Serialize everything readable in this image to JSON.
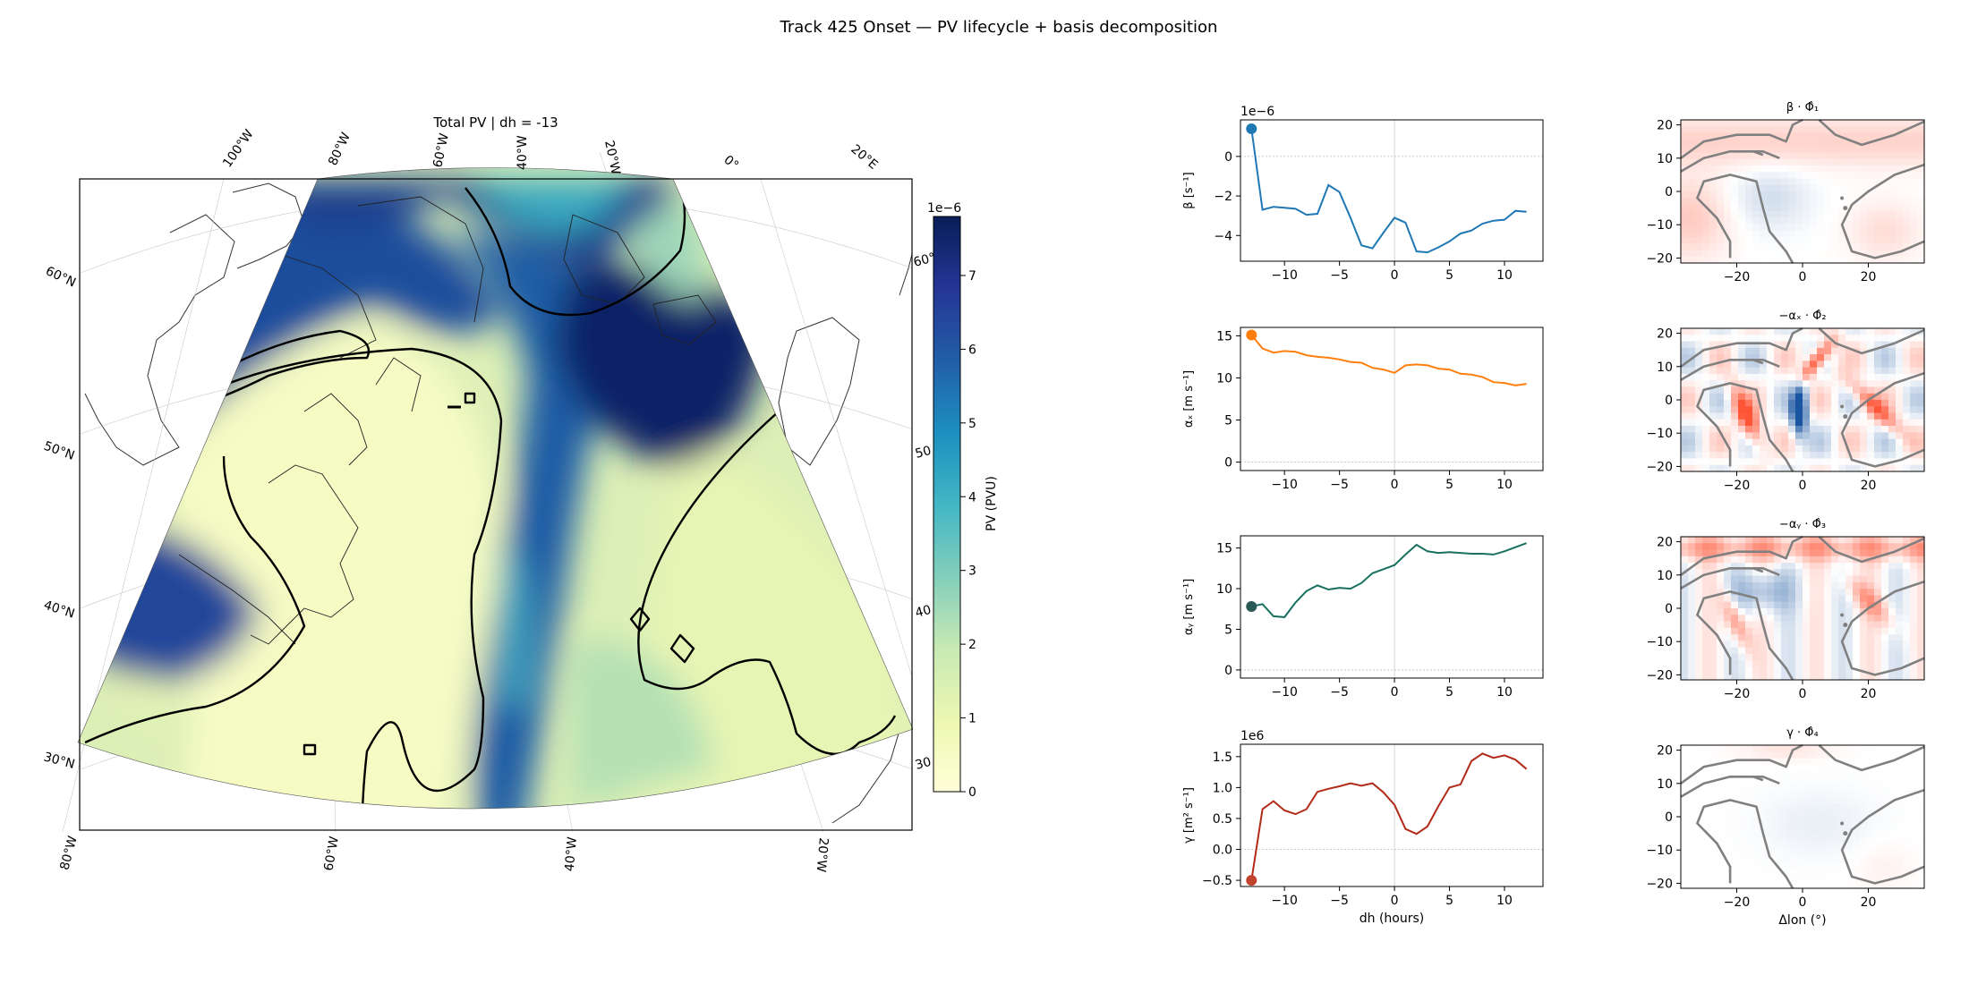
{
  "figure": {
    "suptitle": "Track 425 Onset — PV lifecycle + basis decomposition"
  },
  "map": {
    "title": "Total PV  |  dh = -13",
    "top_lon_labels": [
      "100°W",
      "80°W",
      "60°W",
      "40°W",
      "20°W",
      "0°",
      "20°E"
    ],
    "bottom_lon_labels": [
      "80°W",
      "60°W",
      "40°W",
      "20°W"
    ],
    "left_lat_labels": [
      "60°N",
      "50°N",
      "40°N",
      "30°N"
    ],
    "right_lat_labels": [
      "60°",
      "50",
      "40",
      "30"
    ],
    "colorbar": {
      "label": "PV (PVU)",
      "exponent": "1e−6",
      "ticks": [
        "0",
        "1",
        "2",
        "3",
        "4",
        "5",
        "6",
        "7"
      ],
      "range": [
        0,
        7.8
      ],
      "colormap": [
        "#ffffd9",
        "#edf8b1",
        "#c7e9b4",
        "#7fcdbb",
        "#41b6c4",
        "#1d91c0",
        "#225ea8",
        "#253494",
        "#081d58"
      ]
    }
  },
  "chart_data": [
    {
      "type": "line",
      "name": "beta",
      "ylabel": "β [s⁻¹]",
      "exponent": "1e−6",
      "color": "#1f77b4",
      "x": [
        -13,
        -12,
        -11,
        -10,
        -9,
        -8,
        -7,
        -6,
        -5,
        -4,
        -3,
        -2,
        -1,
        0,
        1,
        2,
        3,
        4,
        5,
        6,
        7,
        8,
        9,
        10,
        11,
        12
      ],
      "values": [
        1.4,
        -2.7,
        -2.55,
        -2.6,
        -2.65,
        -2.95,
        -2.9,
        -1.45,
        -1.8,
        -3.1,
        -4.5,
        -4.65,
        -3.85,
        -3.1,
        -3.35,
        -4.8,
        -4.85,
        -4.6,
        -4.3,
        -3.9,
        -3.75,
        -3.4,
        -3.25,
        -3.2,
        -2.75,
        -2.8
      ],
      "xlim": [
        -14,
        13.5
      ],
      "ylim": [
        -5.3,
        1.85
      ],
      "yticks": [
        -4,
        -2,
        0
      ],
      "xticks": [
        -10,
        -5,
        0,
        5,
        10
      ],
      "reference_y": 0
    },
    {
      "type": "line",
      "name": "alpha_x",
      "ylabel": "αₓ [m s⁻¹]",
      "color": "#ff7f0e",
      "x": [
        -13,
        -12,
        -11,
        -10,
        -9,
        -8,
        -7,
        -6,
        -5,
        -4,
        -3,
        -2,
        -1,
        0,
        1,
        2,
        3,
        4,
        5,
        6,
        7,
        8,
        9,
        10,
        11,
        12
      ],
      "values": [
        15.1,
        13.5,
        13.0,
        13.2,
        13.1,
        12.7,
        12.5,
        12.4,
        12.2,
        11.9,
        11.8,
        11.2,
        11.0,
        10.6,
        11.5,
        11.6,
        11.5,
        11.1,
        11.0,
        10.5,
        10.4,
        10.1,
        9.5,
        9.4,
        9.1,
        9.3
      ],
      "xlim": [
        -14,
        13.5
      ],
      "ylim": [
        -1.0,
        16.0
      ],
      "yticks": [
        0,
        5,
        10,
        15
      ],
      "xticks": [
        -10,
        -5,
        0,
        5,
        10
      ],
      "reference_y": 0
    },
    {
      "type": "line",
      "name": "alpha_y",
      "ylabel": "αᵧ [m s⁻¹]",
      "color": "#17705f",
      "marker_color": "#2a5a55",
      "x": [
        -13,
        -12,
        -11,
        -10,
        -9,
        -8,
        -7,
        -6,
        -5,
        -4,
        -3,
        -2,
        -1,
        0,
        1,
        2,
        3,
        4,
        5,
        6,
        7,
        8,
        9,
        10,
        11,
        12
      ],
      "values": [
        7.8,
        8.1,
        6.6,
        6.5,
        8.3,
        9.7,
        10.4,
        9.9,
        10.1,
        10.0,
        10.7,
        11.9,
        12.4,
        12.9,
        14.2,
        15.4,
        14.6,
        14.4,
        14.5,
        14.4,
        14.3,
        14.3,
        14.2,
        14.6,
        15.1,
        15.6
      ],
      "xlim": [
        -14,
        13.5
      ],
      "ylim": [
        -1.0,
        16.5
      ],
      "yticks": [
        0,
        5,
        10,
        15
      ],
      "xticks": [
        -10,
        -5,
        0,
        5,
        10
      ],
      "reference_y": 0
    },
    {
      "type": "line",
      "name": "gamma",
      "ylabel": "γ [m² s⁻¹]",
      "exponent": "1e6",
      "xlabel": "dh (hours)",
      "color": "#b22b19",
      "marker_color": "#c0432c",
      "x": [
        -13,
        -12,
        -11,
        -10,
        -9,
        -8,
        -7,
        -6,
        -5,
        -4,
        -3,
        -2,
        -1,
        0,
        1,
        2,
        3,
        4,
        5,
        6,
        7,
        8,
        9,
        10,
        11,
        12
      ],
      "values": [
        -0.5,
        0.65,
        0.78,
        0.63,
        0.57,
        0.65,
        0.93,
        0.98,
        1.02,
        1.07,
        1.03,
        1.07,
        0.92,
        0.72,
        0.33,
        0.25,
        0.37,
        0.7,
        1.0,
        1.05,
        1.43,
        1.55,
        1.48,
        1.52,
        1.45,
        1.3
      ],
      "xlim": [
        -14,
        13.5
      ],
      "ylim": [
        -0.6,
        1.7
      ],
      "yticks": [
        -0.5,
        0.0,
        0.5,
        1.0,
        1.5
      ],
      "ytick_labels": [
        "−0.5",
        "0.0",
        "0.5",
        "1.0",
        "1.5"
      ],
      "xticks": [
        -10,
        -5,
        0,
        5,
        10
      ],
      "reference_y": 0
    },
    {
      "type": "heatmap",
      "name": "phi1",
      "title": "β · Φ̂₁",
      "xlim": [
        -37,
        37
      ],
      "ylim": [
        -21.5,
        21.5
      ],
      "xticks": [
        -20,
        0,
        20
      ],
      "yticks": [
        -20,
        -10,
        0,
        10,
        20
      ],
      "pattern": "smooth"
    },
    {
      "type": "heatmap",
      "name": "phi2",
      "title": "−αₓ · Φ̂₂",
      "xlim": [
        -37,
        37
      ],
      "ylim": [
        -21.5,
        21.5
      ],
      "xticks": [
        -20,
        0,
        20
      ],
      "yticks": [
        -20,
        -10,
        0,
        10,
        20
      ],
      "pattern": "strong"
    },
    {
      "type": "heatmap",
      "name": "phi3",
      "title": "−αᵧ · Φ̂₃",
      "xlim": [
        -37,
        37
      ],
      "ylim": [
        -21.5,
        21.5
      ],
      "xticks": [
        -20,
        0,
        20
      ],
      "yticks": [
        -20,
        -10,
        0,
        10,
        20
      ],
      "pattern": "medium"
    },
    {
      "type": "heatmap",
      "name": "phi4",
      "title": "γ · Φ̂₄",
      "xlabel": "Δlon (°)",
      "xlim": [
        -37,
        37
      ],
      "ylim": [
        -21.5,
        21.5
      ],
      "xticks": [
        -20,
        0,
        20
      ],
      "yticks": [
        -20,
        -10,
        0,
        10,
        20
      ],
      "pattern": "weak"
    }
  ]
}
